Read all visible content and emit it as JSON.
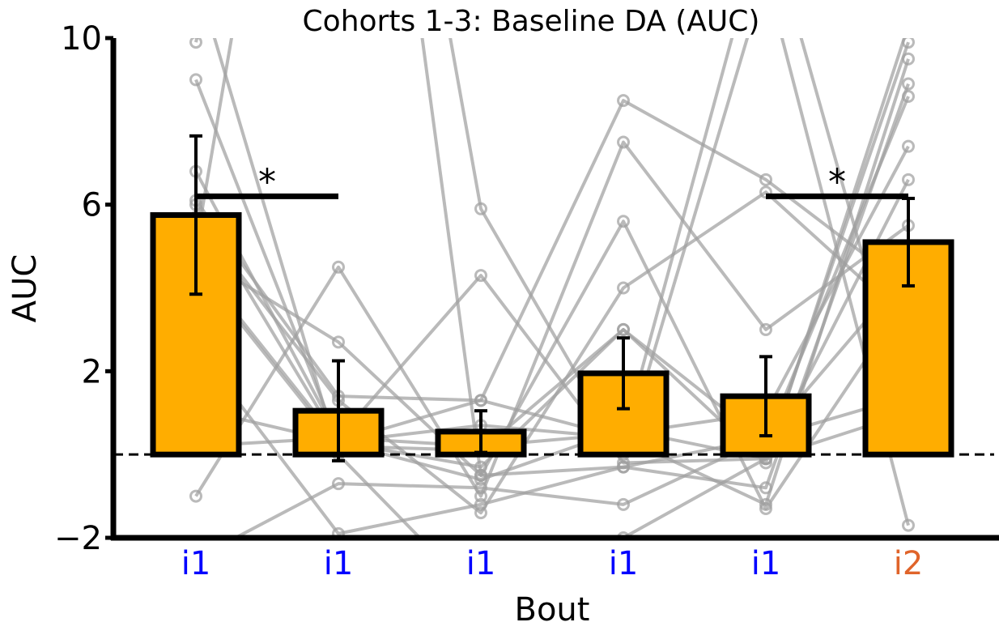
{
  "chart_data": {
    "type": "bar",
    "title": "Cohorts 1-3: Baseline DA (AUC)",
    "xlabel": "Bout",
    "ylabel": "AUC",
    "ylim": [
      -2,
      10
    ],
    "yticks": [
      -2,
      2,
      6,
      10
    ],
    "ytick_labels": [
      "−2",
      "2",
      "6",
      "10"
    ],
    "baseline": 0,
    "categories": [
      "i1",
      "i1",
      "i1",
      "i1",
      "i1",
      "i2"
    ],
    "category_colors": [
      "#0000ff",
      "#0000ff",
      "#0000ff",
      "#0000ff",
      "#0000ff",
      "#e0642a"
    ],
    "bar_color": "#ffad00",
    "values": [
      5.75,
      1.05,
      0.55,
      1.95,
      1.4,
      5.1
    ],
    "errors": [
      1.9,
      1.2,
      0.5,
      0.85,
      0.95,
      1.05
    ],
    "significance": [
      {
        "from": 0,
        "to": 1,
        "y": 6.2,
        "label": "*"
      },
      {
        "from": 4,
        "to": 5,
        "y": 6.2,
        "label": "*"
      }
    ],
    "subjects": [
      [
        9.9,
        25.0,
        5.9,
        0.0,
        11.5,
        -1.7
      ],
      [
        6.8,
        0.4,
        4.3,
        -0.2,
        -0.1,
        9.9
      ],
      [
        4.6,
        0.3,
        -0.3,
        3.0,
        -0.2,
        10.3
      ],
      [
        2.6,
        -1.9,
        -1.2,
        -0.3,
        -0.8,
        8.9
      ],
      [
        1.1,
        0.3,
        1.3,
        0.4,
        -1.2,
        9.5
      ],
      [
        0.2,
        0.4,
        0.2,
        0.5,
        1.0,
        7.4
      ],
      [
        -1.0,
        4.5,
        -1.0,
        7.5,
        3.0,
        5.5
      ],
      [
        4.8,
        2.7,
        -0.5,
        5.6,
        -1.3,
        3.8
      ],
      [
        6.1,
        1.4,
        1.3,
        8.5,
        6.6,
        4.0
      ],
      [
        -2.5,
        -0.7,
        -0.8,
        -1.2,
        0.4,
        1.4
      ],
      [
        5.7,
        1.3,
        -1.4,
        4.0,
        6.3,
        3.2
      ],
      [
        4.5,
        0.2,
        0.1,
        3.0,
        0.3,
        8.6
      ],
      [
        6.0,
        0.3,
        0.7,
        0.4,
        13.0,
        0.9
      ],
      [
        11.5,
        0.0,
        -3.5,
        -2.0,
        -0.1,
        1.0
      ],
      [
        9.0,
        0.3,
        -0.6,
        0.6,
        -0.1,
        6.6
      ],
      [
        5.0,
        25.0,
        -0.5,
        -0.3,
        0.4,
        4.4
      ]
    ]
  }
}
